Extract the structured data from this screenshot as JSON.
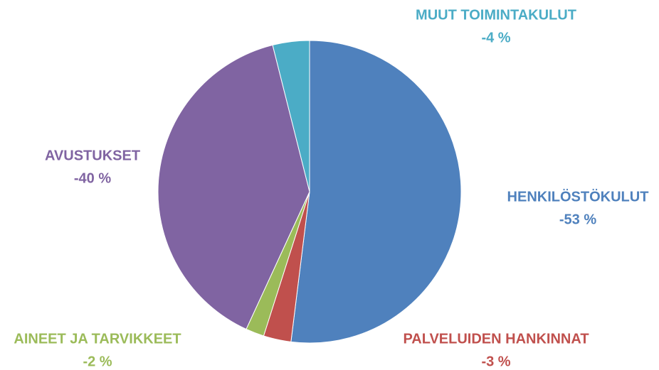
{
  "chart_data": {
    "type": "pie",
    "categories": [
      "HENKILÖSTÖKULUT",
      "PALVELUIDEN HANKINNAT",
      "AINEET JA TARVIKKEET",
      "AVUSTUKSET",
      "MUUT TOIMINTAKULUT"
    ],
    "values": [
      -53,
      -3,
      -2,
      -40,
      -4
    ],
    "value_labels": [
      "-53 %",
      "-3 %",
      "-2 %",
      "-40 %",
      "-4 %"
    ],
    "colors": [
      "#4f81bd",
      "#c0504d",
      "#9bbb59",
      "#8064a2",
      "#4bacc6"
    ]
  }
}
